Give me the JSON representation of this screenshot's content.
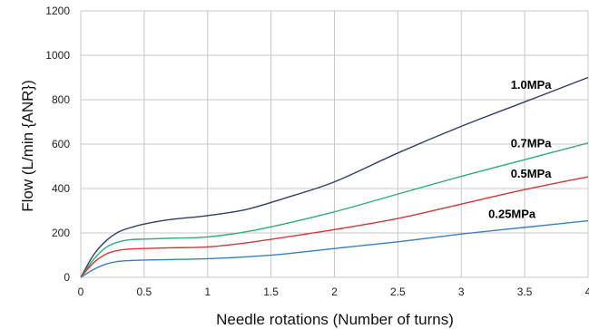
{
  "chart_data": {
    "type": "line",
    "xlabel": "Needle rotations (Number of turns)",
    "ylabel": "Flow (L/min {ANR})",
    "xlim": [
      0,
      4
    ],
    "ylim": [
      0,
      1200
    ],
    "x_ticks": [
      "0",
      "0.5",
      "1",
      "1.5",
      "2",
      "2.5",
      "3",
      "3.5",
      "4"
    ],
    "y_ticks": [
      "0",
      "200",
      "400",
      "600",
      "800",
      "1000",
      "1200"
    ],
    "grid": true,
    "series": [
      {
        "name": "1.0MPa",
        "color": "#2e3f6b",
        "x": [
          0,
          0.1,
          0.2,
          0.3,
          0.4,
          0.5,
          0.7,
          1.0,
          1.3,
          1.6,
          2.0,
          2.5,
          3.0,
          3.5,
          4.0
        ],
        "values": [
          0,
          100,
          165,
          205,
          225,
          240,
          260,
          278,
          305,
          355,
          430,
          560,
          680,
          790,
          900
        ]
      },
      {
        "name": "0.7MPa",
        "color": "#2fae73",
        "x": [
          0,
          0.1,
          0.2,
          0.3,
          0.4,
          0.5,
          0.7,
          1.0,
          1.3,
          1.6,
          2.0,
          2.5,
          3.0,
          3.5,
          4.0
        ],
        "values": [
          0,
          80,
          135,
          160,
          170,
          172,
          176,
          182,
          205,
          240,
          295,
          375,
          455,
          530,
          605
        ]
      },
      {
        "name": "0.5MPa",
        "color": "#d43838",
        "x": [
          0,
          0.1,
          0.2,
          0.3,
          0.4,
          0.5,
          0.7,
          1.0,
          1.3,
          1.6,
          2.0,
          2.5,
          3.0,
          3.5,
          4.0
        ],
        "values": [
          0,
          65,
          105,
          122,
          128,
          130,
          133,
          137,
          155,
          180,
          215,
          265,
          330,
          395,
          453
        ]
      },
      {
        "name": "0.25MPa",
        "color": "#3a7fbf",
        "x": [
          0,
          0.1,
          0.2,
          0.3,
          0.4,
          0.5,
          0.7,
          1.0,
          1.3,
          1.6,
          2.0,
          2.5,
          3.0,
          3.5,
          4.0
        ],
        "values": [
          0,
          35,
          60,
          72,
          76,
          78,
          80,
          84,
          92,
          105,
          130,
          160,
          195,
          225,
          255
        ]
      }
    ]
  }
}
